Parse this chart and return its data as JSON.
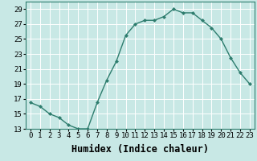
{
  "x": [
    0,
    1,
    2,
    3,
    4,
    5,
    6,
    7,
    8,
    9,
    10,
    11,
    12,
    13,
    14,
    15,
    16,
    17,
    18,
    19,
    20,
    21,
    22,
    23
  ],
  "y": [
    16.5,
    16.0,
    15.0,
    14.5,
    13.5,
    13.0,
    13.0,
    16.5,
    19.5,
    22.0,
    25.5,
    27.0,
    27.5,
    27.5,
    28.0,
    29.0,
    28.5,
    28.5,
    27.5,
    26.5,
    25.0,
    22.5,
    20.5,
    19.0
  ],
  "line_color": "#2e7d6e",
  "marker": "D",
  "marker_size": 2,
  "bg_color": "#c8e8e5",
  "grid_color": "#ffffff",
  "xlabel": "Humidex (Indice chaleur)",
  "xlim": [
    -0.5,
    23.5
  ],
  "ylim": [
    13,
    30
  ],
  "yticks": [
    13,
    15,
    17,
    19,
    21,
    23,
    25,
    27,
    29
  ],
  "xticks": [
    0,
    1,
    2,
    3,
    4,
    5,
    6,
    7,
    8,
    9,
    10,
    11,
    12,
    13,
    14,
    15,
    16,
    17,
    18,
    19,
    20,
    21,
    22,
    23
  ],
  "xtick_labels": [
    "0",
    "1",
    "2",
    "3",
    "4",
    "5",
    "6",
    "7",
    "8",
    "9",
    "10",
    "11",
    "12",
    "13",
    "14",
    "15",
    "16",
    "17",
    "18",
    "19",
    "20",
    "21",
    "22",
    "23"
  ],
  "tick_fontsize": 6.5,
  "xlabel_fontsize": 8.5
}
